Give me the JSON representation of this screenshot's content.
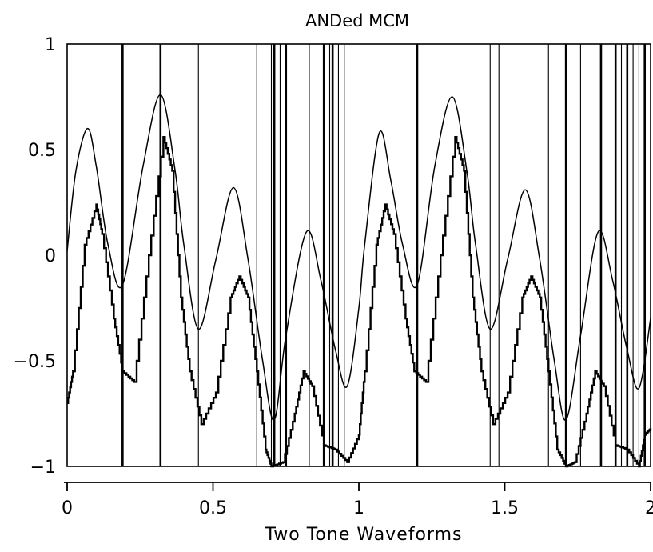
{
  "chart_data": {
    "type": "line",
    "title": "ANDed MCM",
    "xlabel": "Two Tone Waveforms",
    "ylabel": "",
    "xlim": [
      0,
      2
    ],
    "ylim": [
      -1,
      1
    ],
    "x_ticks": [
      0,
      0.5,
      1,
      1.5,
      2
    ],
    "x_tick_labels": [
      "0",
      "0.5",
      "1",
      "1.5",
      "2"
    ],
    "y_ticks": [
      1,
      0.5,
      0,
      -0.5,
      -1
    ],
    "y_tick_labels": [
      "1",
      "0.5",
      "0",
      "−0.5",
      "−1"
    ],
    "grid": false,
    "legend": "none",
    "colors": {
      "line": "#000000",
      "background": "#ffffff"
    },
    "series": [
      {
        "style": "smooth",
        "x": [
          0.0,
          0.03,
          0.07,
          0.1,
          0.14,
          0.19,
          0.26,
          0.32,
          0.37,
          0.4,
          0.45,
          0.51,
          0.57,
          0.62,
          0.67,
          0.71,
          0.75,
          0.82,
          0.87,
          0.92,
          0.96,
          1.0,
          1.02,
          1.07,
          1.11,
          1.15,
          1.2,
          1.26,
          1.32,
          1.37,
          1.4,
          1.45,
          1.51,
          1.57,
          1.62,
          1.67,
          1.71,
          1.76,
          1.82,
          1.87,
          1.92,
          1.96,
          2.0
        ],
        "y": [
          0.02,
          0.4,
          0.6,
          0.42,
          0.05,
          -0.14,
          0.42,
          0.76,
          0.4,
          0.05,
          -0.35,
          -0.02,
          0.32,
          -0.02,
          -0.5,
          -0.78,
          -0.38,
          0.11,
          -0.12,
          -0.45,
          -0.62,
          -0.25,
          0.05,
          0.58,
          0.35,
          0.05,
          -0.14,
          0.42,
          0.75,
          0.4,
          0.05,
          -0.35,
          -0.02,
          0.31,
          -0.02,
          -0.5,
          -0.78,
          -0.38,
          0.11,
          -0.12,
          -0.45,
          -0.63,
          -0.3
        ]
      },
      {
        "style": "staircase",
        "x": [
          0.0,
          0.02,
          0.06,
          0.1,
          0.12,
          0.16,
          0.19,
          0.23,
          0.28,
          0.33,
          0.36,
          0.39,
          0.42,
          0.46,
          0.51,
          0.56,
          0.59,
          0.62,
          0.65,
          0.68,
          0.7,
          0.74,
          0.78,
          0.81,
          0.84,
          0.88,
          0.92,
          0.96,
          1.0,
          1.02,
          1.06,
          1.09,
          1.12,
          1.16,
          1.19,
          1.23,
          1.28,
          1.33,
          1.36,
          1.39,
          1.42,
          1.46,
          1.51,
          1.56,
          1.59,
          1.62,
          1.65,
          1.68,
          1.71,
          1.74,
          1.78,
          1.81,
          1.84,
          1.88,
          1.92,
          1.96,
          1.98,
          2.0
        ],
        "y": [
          -0.7,
          -0.55,
          0.05,
          0.24,
          0.1,
          -0.3,
          -0.55,
          -0.6,
          0.0,
          0.56,
          0.4,
          -0.2,
          -0.55,
          -0.8,
          -0.65,
          -0.2,
          -0.1,
          -0.2,
          -0.55,
          -0.92,
          -1.0,
          -0.98,
          -0.75,
          -0.55,
          -0.62,
          -0.9,
          -0.92,
          -0.98,
          -0.85,
          -0.55,
          0.05,
          0.24,
          0.1,
          -0.3,
          -0.55,
          -0.6,
          0.0,
          0.56,
          0.4,
          -0.2,
          -0.55,
          -0.8,
          -0.65,
          -0.2,
          -0.1,
          -0.2,
          -0.55,
          -0.92,
          -1.0,
          -0.98,
          -0.75,
          -0.55,
          -0.62,
          -0.9,
          -0.92,
          -1.0,
          -0.85,
          -0.82
        ]
      }
    ],
    "vertical_lines": [
      {
        "x": 0.19,
        "weight": "bold"
      },
      {
        "x": 0.32,
        "weight": "bold"
      },
      {
        "x": 0.45,
        "weight": "thin"
      },
      {
        "x": 0.65,
        "weight": "thin"
      },
      {
        "x": 0.7,
        "weight": "thin"
      },
      {
        "x": 0.71,
        "weight": "bold"
      },
      {
        "x": 0.73,
        "weight": "thin"
      },
      {
        "x": 0.75,
        "weight": "bold"
      },
      {
        "x": 0.83,
        "weight": "thin"
      },
      {
        "x": 0.88,
        "weight": "bold"
      },
      {
        "x": 0.9,
        "weight": "thin"
      },
      {
        "x": 0.91,
        "weight": "bold"
      },
      {
        "x": 0.93,
        "weight": "thin"
      },
      {
        "x": 0.95,
        "weight": "thin"
      },
      {
        "x": 1.2,
        "weight": "bold"
      },
      {
        "x": 1.45,
        "weight": "thin"
      },
      {
        "x": 1.48,
        "weight": "thin"
      },
      {
        "x": 1.65,
        "weight": "thin"
      },
      {
        "x": 1.71,
        "weight": "bold"
      },
      {
        "x": 1.76,
        "weight": "thin"
      },
      {
        "x": 1.83,
        "weight": "bold"
      },
      {
        "x": 1.88,
        "weight": "bold"
      },
      {
        "x": 1.9,
        "weight": "thin"
      },
      {
        "x": 1.92,
        "weight": "bold"
      },
      {
        "x": 1.94,
        "weight": "thin"
      },
      {
        "x": 1.96,
        "weight": "thin"
      },
      {
        "x": 1.98,
        "weight": "bold"
      }
    ]
  }
}
